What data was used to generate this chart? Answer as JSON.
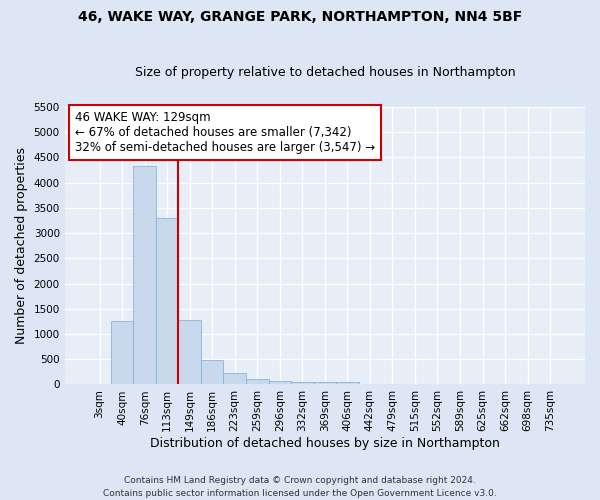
{
  "title1": "46, WAKE WAY, GRANGE PARK, NORTHAMPTON, NN4 5BF",
  "title2": "Size of property relative to detached houses in Northampton",
  "xlabel": "Distribution of detached houses by size in Northampton",
  "ylabel": "Number of detached properties",
  "categories": [
    "3sqm",
    "40sqm",
    "76sqm",
    "113sqm",
    "149sqm",
    "186sqm",
    "223sqm",
    "259sqm",
    "296sqm",
    "332sqm",
    "369sqm",
    "406sqm",
    "442sqm",
    "479sqm",
    "515sqm",
    "552sqm",
    "589sqm",
    "625sqm",
    "662sqm",
    "698sqm",
    "735sqm"
  ],
  "values": [
    0,
    1255,
    4340,
    3300,
    1280,
    480,
    220,
    100,
    75,
    55,
    50,
    40,
    0,
    0,
    0,
    0,
    0,
    0,
    0,
    0,
    0
  ],
  "bar_color": "#c8d9ee",
  "bar_edge_color": "#7aadd4",
  "background_color": "#e8eef8",
  "grid_color": "#ffffff",
  "vline_index": 3,
  "vline_color": "#cc0000",
  "ann_line1": "46 WAKE WAY: 129sqm",
  "ann_line2": "← 67% of detached houses are smaller (7,342)",
  "ann_line3": "32% of semi-detached houses are larger (3,547) →",
  "annotation_box_color": "#ffffff",
  "annotation_box_edge": "#cc0000",
  "ylim": [
    0,
    5500
  ],
  "yticks": [
    0,
    500,
    1000,
    1500,
    2000,
    2500,
    3000,
    3500,
    4000,
    4500,
    5000,
    5500
  ],
  "footer": "Contains HM Land Registry data © Crown copyright and database right 2024.\nContains public sector information licensed under the Open Government Licence v3.0.",
  "title_fontsize": 10,
  "subtitle_fontsize": 9,
  "axis_label_fontsize": 9,
  "tick_fontsize": 7.5,
  "annotation_fontsize": 8.5,
  "footer_fontsize": 6.5
}
